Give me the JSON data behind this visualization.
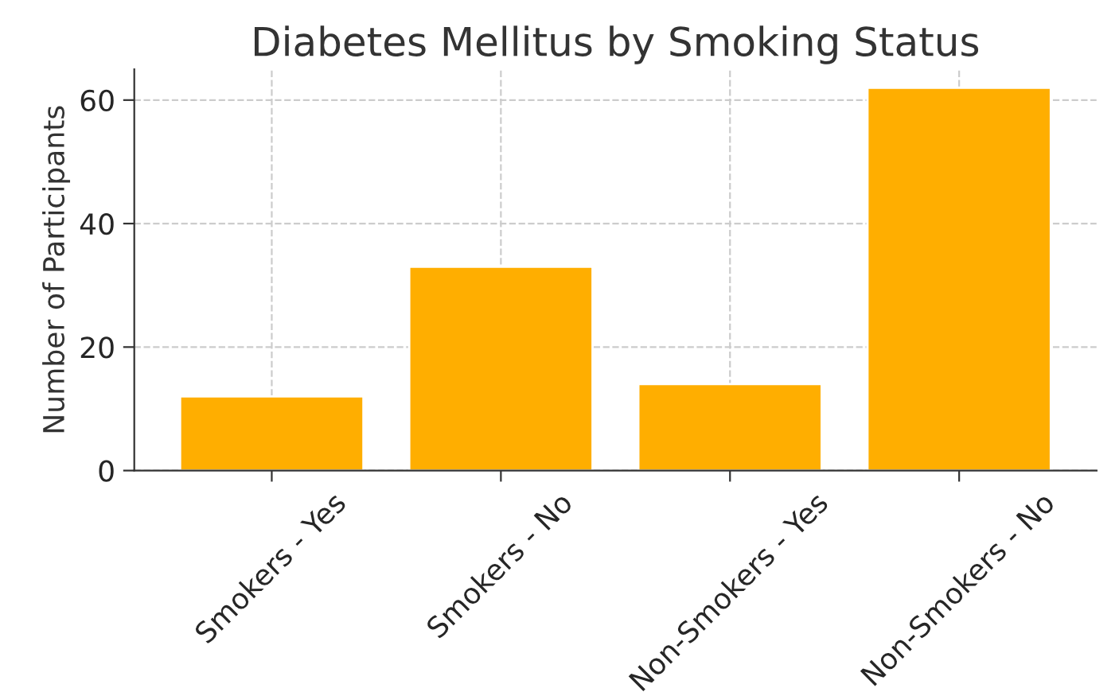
{
  "chart_data": {
    "type": "bar",
    "title": "Diabetes Mellitus by Smoking Status",
    "ylabel": "Number of Participants",
    "categories": [
      "Smokers - Yes",
      "Smokers - No",
      "Non-Smokers - Yes",
      "Non-Smokers - No"
    ],
    "values": [
      12,
      33,
      14,
      62
    ],
    "color": "#ffae00",
    "ylim": [
      0,
      65
    ],
    "yticks": [
      0,
      20,
      40,
      60
    ],
    "grid": true
  }
}
